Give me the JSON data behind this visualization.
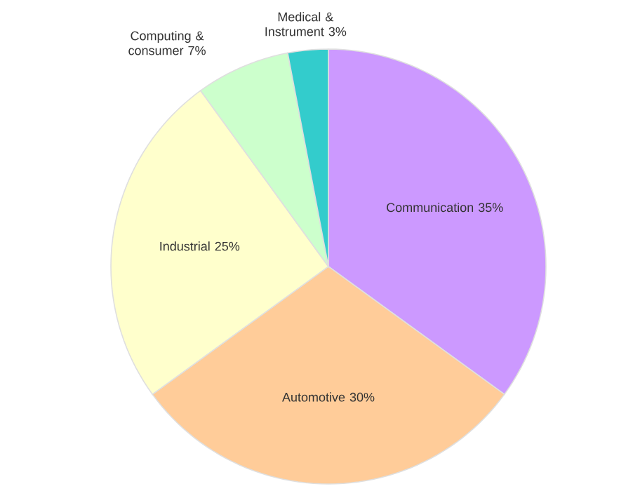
{
  "chart_data": {
    "type": "pie",
    "categories": [
      "Communication",
      "Automotive",
      "Industrial",
      "Computing & consumer",
      "Medical & Instrument"
    ],
    "values": [
      35,
      30,
      25,
      7,
      3
    ],
    "value_labels": [
      "35%",
      "30%",
      "25%",
      "7%",
      "3%"
    ],
    "colors": [
      "#cc99ff",
      "#ffcc99",
      "#ffffcc",
      "#ccffcc",
      "#33cccc"
    ]
  }
}
